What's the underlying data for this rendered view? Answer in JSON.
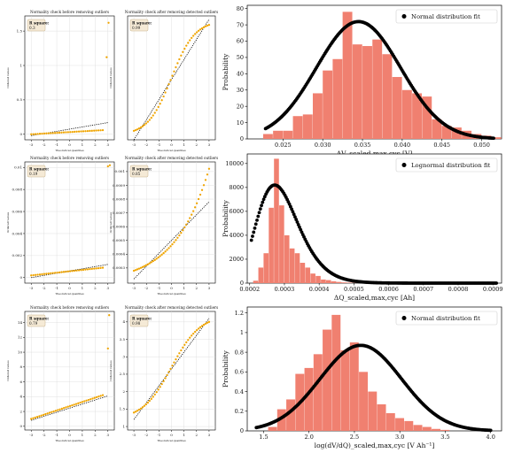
{
  "colors": {
    "scatter": "#f0a500",
    "ref_line": "#000000",
    "hist": "#f08070",
    "fit": "#000000",
    "rsq_box_bg": "#f5ead6",
    "rsq_box_border": "#c8b48c"
  },
  "chart_data": [
    {
      "type": "scatter",
      "title": "Normality check before removing outliers",
      "xlabel": "Theoretical quantiles",
      "ylabel": "Ordered values",
      "rsq_label": "R square:",
      "rsq_value": "0.3",
      "xlim": [
        -3.5,
        3.5
      ],
      "ylim": [
        -0.08,
        1.72
      ],
      "xticks": [
        -3,
        -2,
        -1,
        0,
        1,
        2,
        3
      ],
      "yticks": [
        0.0,
        0.5,
        1.0,
        1.5
      ],
      "points": {
        "z_from": -3.0,
        "z_to": 2.6,
        "n": 34,
        "y_from": 0.0,
        "y_to": 0.06,
        "extra": [
          [
            2.9,
            1.12
          ],
          [
            3.05,
            1.62
          ]
        ]
      },
      "ref_line": [
        [
          -3.0,
          -0.02
        ],
        [
          3.0,
          0.17
        ]
      ]
    },
    {
      "type": "scatter",
      "title": "Normality check after removing detected outliers",
      "xlabel": "Theoretical quantiles",
      "ylabel": "Ordered values",
      "rsq_label": "R square:",
      "rsq_value": "0.99",
      "xlim": [
        -3.5,
        3.5
      ],
      "ylim": [
        -0.05,
        1.75
      ],
      "xticks": [
        -3,
        -2,
        -1,
        0,
        1,
        2,
        3
      ],
      "yticks": [],
      "points": {
        "z_from": -3.0,
        "z_to": 3.0,
        "n": 44,
        "y_from": 0.08,
        "y_to": 1.62,
        "curve": "s"
      },
      "ref_line": [
        [
          -3.0,
          -0.05
        ],
        [
          3.0,
          1.7
        ]
      ]
    },
    {
      "type": "scatter",
      "title": "Normality check before removing outliers",
      "xlabel": "Theoretical quantiles",
      "ylabel": "Ordered values",
      "rsq_label": "R square:",
      "rsq_value": "0.19",
      "xlim": [
        -3.5,
        3.5
      ],
      "ylim": [
        -0.0005,
        0.0105
      ],
      "xticks": [
        -3,
        -2,
        -1,
        0,
        1,
        2,
        3
      ],
      "yticks": [
        0.0,
        0.002,
        0.004,
        0.006,
        0.008,
        0.01
      ],
      "points": {
        "z_from": -3.0,
        "z_to": 2.6,
        "n": 34,
        "y_from": 0.0002,
        "y_to": 0.0009,
        "extra": [
          [
            3.0,
            0.0101
          ],
          [
            3.15,
            0.0102
          ]
        ]
      },
      "ref_line": [
        [
          -3.0,
          0.0
        ],
        [
          3.0,
          0.0012
        ]
      ]
    },
    {
      "type": "scatter",
      "title": "Normality check after removing detected outliers",
      "xlabel": "Theoretical quantiles",
      "ylabel": "Ordered values",
      "rsq_label": "R square:",
      "rsq_value": "0.85",
      "xlim": [
        -3.5,
        3.5
      ],
      "ylim": [
        0.00019,
        0.00107
      ],
      "xticks": [
        -3,
        -2,
        -1,
        0,
        1,
        2,
        3
      ],
      "yticks": [
        0.0003,
        0.0004,
        0.0005,
        0.0006,
        0.0007,
        0.0008,
        0.0009,
        0.001
      ],
      "points": {
        "z_from": -3.0,
        "z_to": 3.0,
        "n": 44,
        "y_from": 0.00028,
        "y_to": 0.00102,
        "curve": "exp"
      },
      "ref_line": [
        [
          -3.0,
          0.00022
        ],
        [
          3.0,
          0.00078
        ]
      ]
    },
    {
      "type": "scatter",
      "title": "Normality check before removing outliers",
      "xlabel": "Theoretical quantiles",
      "ylabel": "Ordered values",
      "rsq_label": "R square:",
      "rsq_value": "0.79",
      "xlim": [
        -3.5,
        3.5
      ],
      "ylim": [
        -0.5,
        15.5
      ],
      "xticks": [
        -3,
        -2,
        -1,
        0,
        1,
        2,
        3
      ],
      "yticks": [
        0,
        2,
        4,
        6,
        8,
        10,
        12,
        14
      ],
      "points": {
        "z_from": -3.0,
        "z_to": 2.6,
        "n": 36,
        "y_from": 1.0,
        "y_to": 4.2,
        "curve": "lin",
        "extra": [
          [
            3.0,
            10.5
          ],
          [
            3.1,
            15.0
          ]
        ]
      },
      "ref_line": [
        [
          -3.0,
          0.8
        ],
        [
          3.0,
          4.1
        ]
      ]
    },
    {
      "type": "scatter",
      "title": "Normality check after removing detected outliers",
      "xlabel": "Theoretical quantiles",
      "ylabel": "Ordered values",
      "rsq_label": "R square:",
      "rsq_value": "0.98",
      "xlim": [
        -3.5,
        3.5
      ],
      "ylim": [
        0.9,
        4.3
      ],
      "xticks": [
        -3,
        -2,
        -1,
        0,
        1,
        2,
        3
      ],
      "yticks": [
        1.0,
        1.5,
        2.0,
        2.5,
        3.0,
        3.5,
        4.0
      ],
      "points": {
        "z_from": -3.0,
        "z_to": 3.0,
        "n": 44,
        "y_from": 1.4,
        "y_to": 4.0,
        "curve": "s2"
      },
      "ref_line": [
        [
          -3.0,
          1.2
        ],
        [
          3.0,
          4.1
        ]
      ]
    },
    {
      "type": "bar",
      "subtype": "histogram_with_fit",
      "xlabel": "ΔV_scaled,max,cyc [V]",
      "ylabel": "Probability",
      "legend": "Normal distribution fit",
      "legend_position": "top-right",
      "xlim": [
        0.0205,
        0.0525
      ],
      "ylim": [
        0,
        82
      ],
      "xticks": [
        0.025,
        0.03,
        0.035,
        0.04,
        0.045,
        0.05
      ],
      "xtick_labels": [
        "0.025",
        "0.030",
        "0.035",
        "0.040",
        "0.045",
        "0.050"
      ],
      "yticks": [
        0,
        10,
        20,
        30,
        40,
        50,
        60,
        70,
        80
      ],
      "bin_start": 0.0225,
      "bin_width": 0.00125,
      "values": [
        3,
        5,
        5,
        14,
        15,
        28,
        42,
        49,
        78,
        58,
        57,
        61,
        52,
        38,
        30,
        28,
        26,
        12,
        8,
        7,
        5,
        3,
        2,
        1
      ],
      "fit": {
        "dist": "normal",
        "mean": 0.0345,
        "sd": 0.0053,
        "peak": 72,
        "from": 0.0228,
        "to": 0.0515
      }
    },
    {
      "type": "bar",
      "subtype": "histogram_with_fit",
      "xlabel": "ΔQ_scaled,max,cyc [Ah]",
      "ylabel": "Probability",
      "legend": "Lognormal distribution fit",
      "legend_position": "top-right",
      "xlim": [
        0.000193,
        0.000925
      ],
      "ylim": [
        0,
        10800
      ],
      "xticks": [
        0.0002,
        0.0003,
        0.0004,
        0.0005,
        0.0006,
        0.0007,
        0.0008,
        0.0009
      ],
      "xtick_labels": [
        "0.0002",
        "0.0003",
        "0.0004",
        "0.0005",
        "0.0006",
        "0.0007",
        "0.0008",
        "0.0009"
      ],
      "yticks": [
        0,
        2000,
        4000,
        6000,
        8000,
        10000
      ],
      "bin_start": 0.00021,
      "bin_width": 1.5e-05,
      "values": [
        200,
        1300,
        2500,
        6300,
        10400,
        6500,
        4000,
        2900,
        2500,
        1700,
        1300,
        800,
        600,
        300,
        250,
        150,
        100,
        60,
        40,
        20
      ],
      "fit": {
        "dist": "lognormal",
        "mode": 0.000272,
        "peak": 8200,
        "sigma": 0.22,
        "from": 0.000205,
        "to": 0.00091
      }
    },
    {
      "type": "bar",
      "subtype": "histogram_with_fit",
      "xlabel": "log(dV/dQ)_scaled,max,cyc [V Ah⁻¹]",
      "ylabel": "Probability",
      "legend": "Normal distribution fit",
      "legend_position": "top-right",
      "xlim": [
        1.32,
        4.12
      ],
      "ylim": [
        0,
        1.26
      ],
      "xticks": [
        1.5,
        2.0,
        2.5,
        3.0,
        3.5,
        4.0
      ],
      "xtick_labels": [
        "1.5",
        "2.0",
        "2.5",
        "3.0",
        "3.5",
        "4.0"
      ],
      "yticks": [
        0.0,
        0.2,
        0.4,
        0.6,
        0.8,
        1.0,
        1.2
      ],
      "bin_start": 1.55,
      "bin_width": 0.1,
      "values": [
        0.04,
        0.22,
        0.32,
        0.58,
        0.64,
        0.78,
        1.03,
        1.18,
        0.82,
        0.9,
        0.6,
        0.4,
        0.27,
        0.18,
        0.13,
        0.1,
        0.06,
        0.04,
        0.02,
        0.01
      ],
      "fit": {
        "dist": "normal",
        "mean": 2.57,
        "sd": 0.45,
        "peak": 0.87,
        "from": 1.42,
        "to": 4.0
      }
    }
  ]
}
